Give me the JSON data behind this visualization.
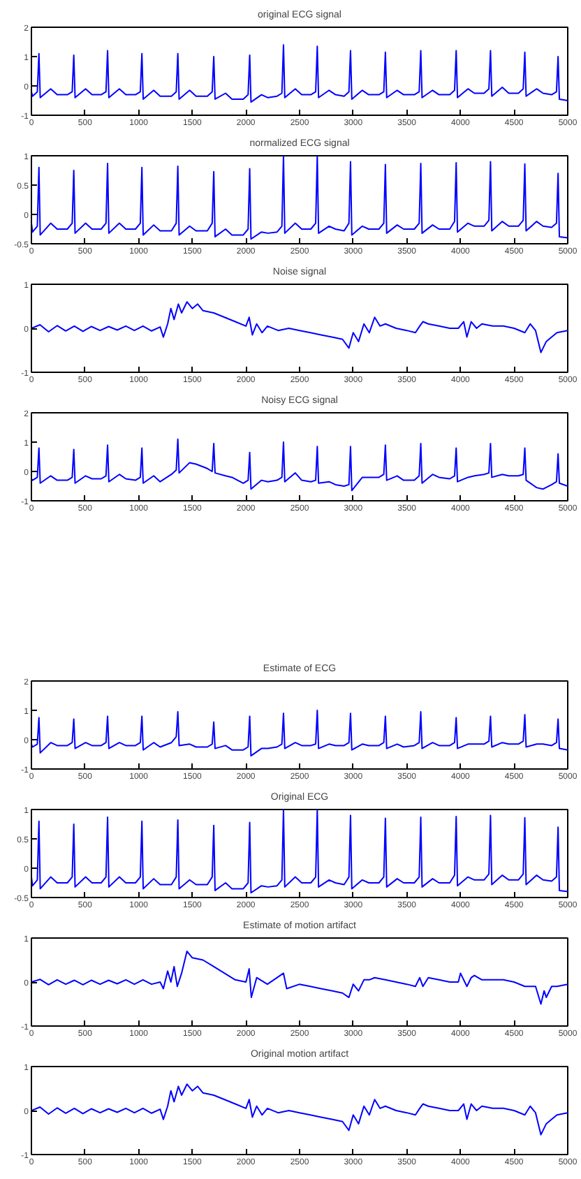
{
  "chart_data": [
    {
      "type": "line",
      "title": "original ECG signal",
      "color": "#0000ff",
      "xlim": [
        0,
        5000
      ],
      "xticks": [
        0,
        500,
        1000,
        1500,
        2000,
        2500,
        3000,
        3500,
        4000,
        4500,
        5000
      ],
      "ylim": [
        -1,
        2
      ],
      "yticks": [
        -1,
        0,
        1,
        2
      ],
      "x": [
        0,
        10,
        55,
        70,
        82,
        180,
        240,
        335,
        380,
        395,
        407,
        505,
        565,
        650,
        695,
        710,
        722,
        820,
        880,
        970,
        1015,
        1030,
        1042,
        1140,
        1200,
        1305,
        1350,
        1365,
        1377,
        1475,
        1535,
        1640,
        1685,
        1700,
        1712,
        1810,
        1870,
        1975,
        2020,
        2035,
        2047,
        2145,
        2205,
        2290,
        2335,
        2350,
        2362,
        2460,
        2520,
        2605,
        2650,
        2665,
        2677,
        2775,
        2835,
        2915,
        2960,
        2975,
        2987,
        3085,
        3145,
        3240,
        3285,
        3300,
        3312,
        3410,
        3470,
        3570,
        3615,
        3630,
        3642,
        3740,
        3800,
        3900,
        3945,
        3960,
        3972,
        4070,
        4130,
        4220,
        4265,
        4280,
        4292,
        4390,
        4450,
        4540,
        4585,
        4600,
        4612,
        4710,
        4770,
        4850,
        4895,
        4910,
        4922,
        5000
      ],
      "values": [
        -0.2,
        -0.35,
        -0.2,
        1.1,
        -0.4,
        -0.1,
        -0.3,
        -0.3,
        -0.2,
        1.05,
        -0.4,
        -0.1,
        -0.3,
        -0.3,
        -0.2,
        1.2,
        -0.4,
        -0.1,
        -0.3,
        -0.3,
        -0.2,
        1.1,
        -0.45,
        -0.15,
        -0.35,
        -0.35,
        -0.2,
        1.1,
        -0.45,
        -0.15,
        -0.35,
        -0.35,
        -0.2,
        1.0,
        -0.45,
        -0.25,
        -0.45,
        -0.45,
        -0.3,
        1.05,
        -0.55,
        -0.3,
        -0.4,
        -0.35,
        -0.25,
        1.4,
        -0.4,
        -0.1,
        -0.3,
        -0.3,
        -0.2,
        1.35,
        -0.4,
        -0.15,
        -0.3,
        -0.35,
        -0.2,
        1.2,
        -0.45,
        -0.15,
        -0.3,
        -0.3,
        -0.2,
        1.15,
        -0.4,
        -0.15,
        -0.3,
        -0.3,
        -0.2,
        1.2,
        -0.4,
        -0.15,
        -0.3,
        -0.3,
        -0.15,
        1.2,
        -0.4,
        -0.1,
        -0.25,
        -0.25,
        -0.1,
        1.2,
        -0.35,
        -0.05,
        -0.25,
        -0.25,
        -0.1,
        1.15,
        -0.35,
        -0.1,
        -0.25,
        -0.3,
        -0.2,
        1.0,
        -0.45,
        -0.5
      ]
    },
    {
      "type": "line",
      "title": "normalized ECG signal",
      "color": "#0000ff",
      "xlim": [
        0,
        5000
      ],
      "xticks": [
        0,
        500,
        1000,
        1500,
        2000,
        2500,
        3000,
        3500,
        4000,
        4500,
        5000
      ],
      "ylim": [
        -0.5,
        1
      ],
      "yticks": [
        -0.5,
        0,
        0.5,
        1
      ],
      "x": [
        0,
        10,
        55,
        70,
        82,
        180,
        240,
        335,
        380,
        395,
        407,
        505,
        565,
        650,
        695,
        710,
        722,
        820,
        880,
        970,
        1015,
        1030,
        1042,
        1140,
        1200,
        1305,
        1350,
        1365,
        1377,
        1475,
        1535,
        1640,
        1685,
        1700,
        1712,
        1810,
        1870,
        1975,
        2020,
        2035,
        2047,
        2145,
        2205,
        2290,
        2335,
        2350,
        2362,
        2460,
        2520,
        2605,
        2650,
        2665,
        2677,
        2775,
        2835,
        2915,
        2960,
        2975,
        2987,
        3085,
        3145,
        3240,
        3285,
        3300,
        3312,
        3410,
        3470,
        3570,
        3615,
        3630,
        3642,
        3740,
        3800,
        3900,
        3945,
        3960,
        3972,
        4070,
        4130,
        4220,
        4265,
        4280,
        4292,
        4390,
        4450,
        4540,
        4585,
        4600,
        4612,
        4710,
        4770,
        4850,
        4895,
        4910,
        4922,
        5000
      ],
      "values": [
        -0.15,
        -0.3,
        -0.2,
        0.8,
        -0.35,
        -0.15,
        -0.25,
        -0.25,
        -0.15,
        0.75,
        -0.32,
        -0.15,
        -0.25,
        -0.25,
        -0.15,
        0.87,
        -0.32,
        -0.15,
        -0.25,
        -0.25,
        -0.15,
        0.8,
        -0.35,
        -0.18,
        -0.28,
        -0.28,
        -0.15,
        0.82,
        -0.35,
        -0.2,
        -0.28,
        -0.28,
        -0.15,
        0.73,
        -0.38,
        -0.25,
        -0.35,
        -0.35,
        -0.25,
        0.78,
        -0.42,
        -0.3,
        -0.32,
        -0.3,
        -0.2,
        1.0,
        -0.32,
        -0.15,
        -0.25,
        -0.25,
        -0.15,
        1.0,
        -0.32,
        -0.2,
        -0.25,
        -0.28,
        -0.15,
        0.9,
        -0.35,
        -0.2,
        -0.25,
        -0.25,
        -0.15,
        0.85,
        -0.32,
        -0.18,
        -0.25,
        -0.25,
        -0.15,
        0.87,
        -0.32,
        -0.18,
        -0.25,
        -0.25,
        -0.12,
        0.88,
        -0.3,
        -0.15,
        -0.2,
        -0.2,
        -0.1,
        0.9,
        -0.28,
        -0.12,
        -0.2,
        -0.2,
        -0.1,
        0.86,
        -0.28,
        -0.12,
        -0.2,
        -0.22,
        -0.15,
        0.7,
        -0.38,
        -0.4
      ]
    },
    {
      "type": "line",
      "title": "Noise signal",
      "color": "#0000ff",
      "xlim": [
        0,
        5000
      ],
      "xticks": [
        0,
        500,
        1000,
        1500,
        2000,
        2500,
        3000,
        3500,
        4000,
        4500,
        5000
      ],
      "ylim": [
        -1,
        1
      ],
      "yticks": [
        -1,
        0,
        1
      ],
      "x": [
        0,
        80,
        160,
        240,
        320,
        400,
        480,
        560,
        640,
        720,
        800,
        880,
        960,
        1040,
        1120,
        1200,
        1230,
        1270,
        1300,
        1330,
        1370,
        1400,
        1450,
        1500,
        1550,
        1600,
        1700,
        1800,
        1900,
        2000,
        2030,
        2060,
        2100,
        2150,
        2200,
        2300,
        2400,
        2500,
        2600,
        2700,
        2800,
        2900,
        2960,
        3000,
        3050,
        3100,
        3150,
        3200,
        3250,
        3300,
        3400,
        3500,
        3580,
        3620,
        3650,
        3700,
        3800,
        3900,
        3980,
        4030,
        4060,
        4100,
        4150,
        4200,
        4300,
        4400,
        4500,
        4600,
        4650,
        4700,
        4750,
        4800,
        4850,
        4900,
        5000
      ],
      "values": [
        0,
        0.08,
        -0.08,
        0.06,
        -0.06,
        0.05,
        -0.07,
        0.04,
        -0.05,
        0.04,
        -0.04,
        0.05,
        -0.05,
        0.05,
        -0.06,
        0.03,
        -0.2,
        0.1,
        0.45,
        0.2,
        0.55,
        0.35,
        0.6,
        0.45,
        0.55,
        0.4,
        0.35,
        0.25,
        0.15,
        0.05,
        0.25,
        -0.15,
        0.1,
        -0.1,
        0.05,
        -0.05,
        0,
        -0.05,
        -0.1,
        -0.15,
        -0.2,
        -0.25,
        -0.45,
        -0.1,
        -0.3,
        0.1,
        -0.1,
        0.25,
        0.05,
        0.1,
        0,
        -0.05,
        -0.1,
        0.05,
        0.15,
        0.1,
        0.05,
        0,
        0,
        0.15,
        -0.2,
        0.15,
        0,
        0.1,
        0.05,
        0.05,
        0,
        -0.1,
        0.1,
        -0.05,
        -0.55,
        -0.3,
        -0.2,
        -0.1,
        -0.05
      ]
    },
    {
      "type": "line",
      "title": "Noisy ECG signal",
      "color": "#0000ff",
      "xlim": [
        0,
        5000
      ],
      "xticks": [
        0,
        500,
        1000,
        1500,
        2000,
        2500,
        3000,
        3500,
        4000,
        4500,
        5000
      ],
      "ylim": [
        -1,
        2
      ],
      "yticks": [
        -1,
        0,
        1,
        2
      ],
      "x": [
        0,
        10,
        55,
        70,
        82,
        180,
        240,
        335,
        380,
        395,
        407,
        505,
        565,
        650,
        695,
        710,
        722,
        820,
        880,
        970,
        1015,
        1030,
        1042,
        1140,
        1200,
        1305,
        1350,
        1365,
        1377,
        1475,
        1535,
        1640,
        1685,
        1700,
        1712,
        1810,
        1870,
        1975,
        2020,
        2035,
        2047,
        2145,
        2205,
        2290,
        2335,
        2350,
        2362,
        2460,
        2520,
        2605,
        2650,
        2665,
        2677,
        2775,
        2835,
        2915,
        2960,
        2975,
        2987,
        3085,
        3145,
        3240,
        3285,
        3300,
        3312,
        3410,
        3470,
        3570,
        3615,
        3630,
        3642,
        3740,
        3800,
        3900,
        3945,
        3960,
        3972,
        4070,
        4130,
        4220,
        4265,
        4280,
        4292,
        4390,
        4450,
        4540,
        4585,
        4600,
        4612,
        4710,
        4770,
        4850,
        4895,
        4910,
        4922,
        5000
      ],
      "values": [
        -0.25,
        -0.3,
        -0.2,
        0.8,
        -0.4,
        -0.15,
        -0.3,
        -0.3,
        -0.2,
        0.75,
        -0.4,
        -0.15,
        -0.25,
        -0.25,
        -0.15,
        0.9,
        -0.35,
        -0.1,
        -0.25,
        -0.3,
        -0.2,
        0.8,
        -0.4,
        -0.15,
        -0.35,
        -0.1,
        0.05,
        1.1,
        -0.05,
        0.3,
        0.25,
        0.1,
        0,
        0.95,
        -0.05,
        -0.15,
        -0.2,
        -0.4,
        -0.3,
        0.65,
        -0.6,
        -0.3,
        -0.35,
        -0.3,
        -0.2,
        1.0,
        -0.35,
        -0.05,
        -0.3,
        -0.35,
        -0.3,
        0.85,
        -0.4,
        -0.35,
        -0.45,
        -0.5,
        -0.45,
        0.85,
        -0.65,
        -0.2,
        -0.2,
        -0.2,
        -0.1,
        0.9,
        -0.3,
        -0.15,
        -0.3,
        -0.3,
        -0.15,
        0.95,
        -0.4,
        -0.1,
        -0.2,
        -0.25,
        -0.15,
        0.8,
        -0.35,
        -0.2,
        -0.15,
        -0.1,
        -0.05,
        0.95,
        -0.2,
        -0.1,
        -0.15,
        -0.15,
        -0.1,
        0.8,
        -0.3,
        -0.55,
        -0.6,
        -0.45,
        -0.35,
        0.6,
        -0.4,
        -0.5
      ]
    },
    {
      "type": "line",
      "title": "Estimate of ECG",
      "color": "#0000ff",
      "xlim": [
        0,
        5000
      ],
      "xticks": [
        0,
        500,
        1000,
        1500,
        2000,
        2500,
        3000,
        3500,
        4000,
        4500,
        5000
      ],
      "ylim": [
        -1,
        2
      ],
      "yticks": [
        -1,
        0,
        1,
        2
      ],
      "x": [
        0,
        10,
        55,
        70,
        82,
        180,
        240,
        335,
        380,
        395,
        407,
        505,
        565,
        650,
        695,
        710,
        722,
        820,
        880,
        970,
        1015,
        1030,
        1042,
        1140,
        1200,
        1305,
        1350,
        1365,
        1377,
        1475,
        1535,
        1640,
        1685,
        1700,
        1712,
        1810,
        1870,
        1975,
        2020,
        2035,
        2047,
        2145,
        2205,
        2290,
        2335,
        2350,
        2362,
        2460,
        2520,
        2605,
        2650,
        2665,
        2677,
        2775,
        2835,
        2915,
        2960,
        2975,
        2987,
        3085,
        3145,
        3240,
        3285,
        3300,
        3312,
        3410,
        3470,
        3570,
        3615,
        3630,
        3642,
        3740,
        3800,
        3900,
        3945,
        3960,
        3972,
        4070,
        4130,
        4220,
        4265,
        4280,
        4292,
        4390,
        4450,
        4540,
        4585,
        4600,
        4612,
        4710,
        4770,
        4850,
        4895,
        4910,
        4922,
        5000
      ],
      "values": [
        -0.15,
        -0.25,
        -0.15,
        0.75,
        -0.45,
        -0.1,
        -0.2,
        -0.2,
        -0.1,
        0.7,
        -0.3,
        -0.1,
        -0.2,
        -0.2,
        -0.1,
        0.8,
        -0.3,
        -0.1,
        -0.2,
        -0.2,
        -0.1,
        0.8,
        -0.35,
        -0.1,
        -0.25,
        -0.1,
        0.1,
        0.95,
        -0.2,
        -0.15,
        -0.25,
        -0.25,
        -0.15,
        0.6,
        -0.3,
        -0.2,
        -0.35,
        -0.35,
        -0.25,
        0.8,
        -0.55,
        -0.3,
        -0.3,
        -0.25,
        -0.15,
        0.9,
        -0.3,
        -0.1,
        -0.2,
        -0.2,
        -0.15,
        1.0,
        -0.3,
        -0.15,
        -0.2,
        -0.2,
        -0.1,
        0.9,
        -0.35,
        -0.15,
        -0.2,
        -0.2,
        -0.1,
        0.8,
        -0.3,
        -0.15,
        -0.25,
        -0.2,
        -0.1,
        0.95,
        -0.3,
        -0.1,
        -0.2,
        -0.2,
        -0.1,
        0.75,
        -0.3,
        -0.15,
        -0.15,
        -0.15,
        -0.05,
        0.8,
        -0.25,
        -0.1,
        -0.15,
        -0.15,
        -0.05,
        0.85,
        -0.25,
        -0.15,
        -0.15,
        -0.2,
        -0.1,
        0.7,
        -0.3,
        -0.35
      ]
    },
    {
      "type": "line",
      "title": "Original ECG",
      "color": "#0000ff",
      "xlim": [
        0,
        5000
      ],
      "xticks": [
        0,
        500,
        1000,
        1500,
        2000,
        2500,
        3000,
        3500,
        4000,
        4500,
        5000
      ],
      "ylim": [
        -0.5,
        1
      ],
      "yticks": [
        -0.5,
        0,
        0.5,
        1
      ],
      "x": [
        0,
        10,
        55,
        70,
        82,
        180,
        240,
        335,
        380,
        395,
        407,
        505,
        565,
        650,
        695,
        710,
        722,
        820,
        880,
        970,
        1015,
        1030,
        1042,
        1140,
        1200,
        1305,
        1350,
        1365,
        1377,
        1475,
        1535,
        1640,
        1685,
        1700,
        1712,
        1810,
        1870,
        1975,
        2020,
        2035,
        2047,
        2145,
        2205,
        2290,
        2335,
        2350,
        2362,
        2460,
        2520,
        2605,
        2650,
        2665,
        2677,
        2775,
        2835,
        2915,
        2960,
        2975,
        2987,
        3085,
        3145,
        3240,
        3285,
        3300,
        3312,
        3410,
        3470,
        3570,
        3615,
        3630,
        3642,
        3740,
        3800,
        3900,
        3945,
        3960,
        3972,
        4070,
        4130,
        4220,
        4265,
        4280,
        4292,
        4390,
        4450,
        4540,
        4585,
        4600,
        4612,
        4710,
        4770,
        4850,
        4895,
        4910,
        4922,
        5000
      ],
      "values": [
        -0.15,
        -0.3,
        -0.2,
        0.8,
        -0.35,
        -0.15,
        -0.25,
        -0.25,
        -0.15,
        0.75,
        -0.32,
        -0.15,
        -0.25,
        -0.25,
        -0.15,
        0.87,
        -0.32,
        -0.15,
        -0.25,
        -0.25,
        -0.15,
        0.8,
        -0.35,
        -0.18,
        -0.28,
        -0.28,
        -0.15,
        0.82,
        -0.35,
        -0.2,
        -0.28,
        -0.28,
        -0.15,
        0.73,
        -0.38,
        -0.25,
        -0.35,
        -0.35,
        -0.25,
        0.78,
        -0.42,
        -0.3,
        -0.32,
        -0.3,
        -0.2,
        1.0,
        -0.32,
        -0.15,
        -0.25,
        -0.25,
        -0.15,
        1.0,
        -0.32,
        -0.2,
        -0.25,
        -0.28,
        -0.15,
        0.9,
        -0.35,
        -0.2,
        -0.25,
        -0.25,
        -0.15,
        0.85,
        -0.32,
        -0.18,
        -0.25,
        -0.25,
        -0.15,
        0.87,
        -0.32,
        -0.18,
        -0.25,
        -0.25,
        -0.12,
        0.88,
        -0.3,
        -0.15,
        -0.2,
        -0.2,
        -0.1,
        0.9,
        -0.28,
        -0.12,
        -0.2,
        -0.2,
        -0.1,
        0.86,
        -0.28,
        -0.12,
        -0.2,
        -0.22,
        -0.15,
        0.7,
        -0.38,
        -0.4
      ]
    },
    {
      "type": "line",
      "title": "Estimate of motion artifact",
      "color": "#0000ff",
      "xlim": [
        0,
        5000
      ],
      "xticks": [
        0,
        500,
        1000,
        1500,
        2000,
        2500,
        3000,
        3500,
        4000,
        4500,
        5000
      ],
      "ylim": [
        -1,
        1
      ],
      "yticks": [
        -1,
        0,
        1
      ],
      "x": [
        0,
        80,
        160,
        240,
        320,
        400,
        480,
        560,
        640,
        720,
        800,
        880,
        960,
        1040,
        1120,
        1200,
        1230,
        1270,
        1300,
        1330,
        1360,
        1400,
        1450,
        1500,
        1600,
        1700,
        1800,
        1900,
        2000,
        2030,
        2050,
        2100,
        2200,
        2350,
        2380,
        2500,
        2600,
        2700,
        2800,
        2900,
        2960,
        3000,
        3050,
        3100,
        3150,
        3200,
        3300,
        3400,
        3500,
        3580,
        3620,
        3650,
        3700,
        3800,
        3900,
        3980,
        4000,
        4060,
        4100,
        4130,
        4200,
        4300,
        4400,
        4500,
        4600,
        4700,
        4750,
        4780,
        4800,
        4850,
        4900,
        5000
      ],
      "values": [
        0,
        0.06,
        -0.06,
        0.05,
        -0.05,
        0.04,
        -0.06,
        0.04,
        -0.05,
        0.04,
        -0.04,
        0.05,
        -0.05,
        0.05,
        -0.05,
        0,
        -0.15,
        0.25,
        0,
        0.35,
        -0.1,
        0.2,
        0.7,
        0.55,
        0.5,
        0.35,
        0.2,
        0.05,
        0,
        0.3,
        -0.35,
        0.1,
        -0.05,
        0.2,
        -0.15,
        -0.05,
        -0.1,
        -0.15,
        -0.2,
        -0.25,
        -0.35,
        -0.05,
        -0.2,
        0.05,
        0.05,
        0.1,
        0.05,
        0,
        -0.05,
        -0.1,
        0.1,
        -0.1,
        0.1,
        0.05,
        0,
        0,
        0.2,
        -0.1,
        0.1,
        0.15,
        0.05,
        0.05,
        0.05,
        0,
        -0.1,
        -0.1,
        -0.5,
        -0.2,
        -0.35,
        -0.1,
        -0.1,
        -0.05
      ]
    },
    {
      "type": "line",
      "title": "Original motion artifact",
      "color": "#0000ff",
      "xlim": [
        0,
        5000
      ],
      "xticks": [
        0,
        500,
        1000,
        1500,
        2000,
        2500,
        3000,
        3500,
        4000,
        4500,
        5000
      ],
      "ylim": [
        -1,
        1
      ],
      "yticks": [
        -1,
        0,
        1
      ],
      "x": [
        0,
        80,
        160,
        240,
        320,
        400,
        480,
        560,
        640,
        720,
        800,
        880,
        960,
        1040,
        1120,
        1200,
        1230,
        1270,
        1300,
        1330,
        1370,
        1400,
        1450,
        1500,
        1550,
        1600,
        1700,
        1800,
        1900,
        2000,
        2030,
        2060,
        2100,
        2150,
        2200,
        2300,
        2400,
        2500,
        2600,
        2700,
        2800,
        2900,
        2960,
        3000,
        3050,
        3100,
        3150,
        3200,
        3250,
        3300,
        3400,
        3500,
        3580,
        3620,
        3650,
        3700,
        3800,
        3900,
        3980,
        4030,
        4060,
        4100,
        4150,
        4200,
        4300,
        4400,
        4500,
        4600,
        4650,
        4700,
        4750,
        4800,
        4850,
        4900,
        5000
      ],
      "values": [
        0,
        0.08,
        -0.08,
        0.06,
        -0.06,
        0.05,
        -0.07,
        0.04,
        -0.05,
        0.04,
        -0.04,
        0.05,
        -0.05,
        0.05,
        -0.06,
        0.03,
        -0.2,
        0.1,
        0.45,
        0.2,
        0.55,
        0.35,
        0.6,
        0.45,
        0.55,
        0.4,
        0.35,
        0.25,
        0.15,
        0.05,
        0.25,
        -0.15,
        0.1,
        -0.1,
        0.05,
        -0.05,
        0,
        -0.05,
        -0.1,
        -0.15,
        -0.2,
        -0.25,
        -0.45,
        -0.1,
        -0.3,
        0.1,
        -0.1,
        0.25,
        0.05,
        0.1,
        0,
        -0.05,
        -0.1,
        0.05,
        0.15,
        0.1,
        0.05,
        0,
        0,
        0.15,
        -0.2,
        0.15,
        0,
        0.1,
        0.05,
        0.05,
        0,
        -0.1,
        0.1,
        -0.05,
        -0.55,
        -0.3,
        -0.2,
        -0.1,
        -0.05
      ]
    }
  ]
}
